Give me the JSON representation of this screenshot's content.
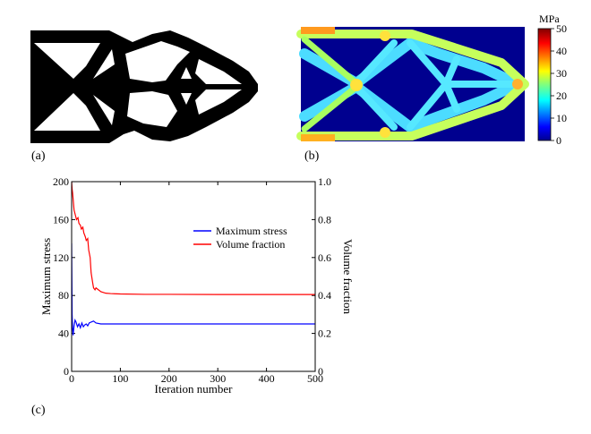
{
  "panels": {
    "a_label": "(a)",
    "b_label": "(b)",
    "c_label": "(c)"
  },
  "colorbar": {
    "unit": "MPa",
    "range": [
      0,
      50
    ],
    "ticks": [
      0,
      10,
      20,
      30,
      40,
      50
    ],
    "colormap": "jet"
  },
  "chart_data": {
    "type": "line",
    "xlabel": "Iteration number",
    "ylabel": "Maximum stress",
    "y2label": "Volume fraction",
    "xlim": [
      0,
      500
    ],
    "ylim": [
      0,
      200
    ],
    "y2lim": [
      0,
      1.0
    ],
    "xticks": [
      0,
      100,
      200,
      300,
      400,
      500
    ],
    "yticks": [
      0,
      40,
      80,
      120,
      160,
      200
    ],
    "y2ticks": [
      "0",
      "0.2",
      "0.4",
      "0.6",
      "0.8",
      "1.0"
    ],
    "legend_position": "upper-right",
    "series": [
      {
        "name": "Maximum stress",
        "axis": "left",
        "color": "#0000ff",
        "x": [
          0,
          1,
          2,
          3,
          5,
          7,
          9,
          12,
          15,
          18,
          21,
          24,
          27,
          30,
          33,
          36,
          40,
          45,
          50,
          60,
          80,
          100,
          200,
          300,
          400,
          500
        ],
        "y": [
          135,
          60,
          45,
          38,
          48,
          54,
          52,
          47,
          50,
          46,
          51,
          47,
          49,
          50,
          48,
          51,
          52,
          53,
          51,
          50,
          50,
          50,
          50,
          50,
          50,
          50
        ]
      },
      {
        "name": "Volume fraction",
        "axis": "right",
        "color": "#ff0000",
        "x": [
          0,
          1,
          2,
          3,
          5,
          8,
          10,
          13,
          15,
          18,
          20,
          23,
          25,
          28,
          30,
          33,
          35,
          38,
          40,
          43,
          45,
          48,
          50,
          55,
          60,
          70,
          80,
          100,
          150,
          200,
          300,
          400,
          500
        ],
        "y": [
          1.0,
          0.96,
          0.94,
          0.91,
          0.85,
          0.82,
          0.8,
          0.81,
          0.78,
          0.77,
          0.75,
          0.76,
          0.73,
          0.71,
          0.69,
          0.7,
          0.64,
          0.6,
          0.52,
          0.47,
          0.44,
          0.43,
          0.44,
          0.43,
          0.42,
          0.412,
          0.41,
          0.408,
          0.406,
          0.406,
          0.405,
          0.405,
          0.405
        ]
      }
    ]
  }
}
